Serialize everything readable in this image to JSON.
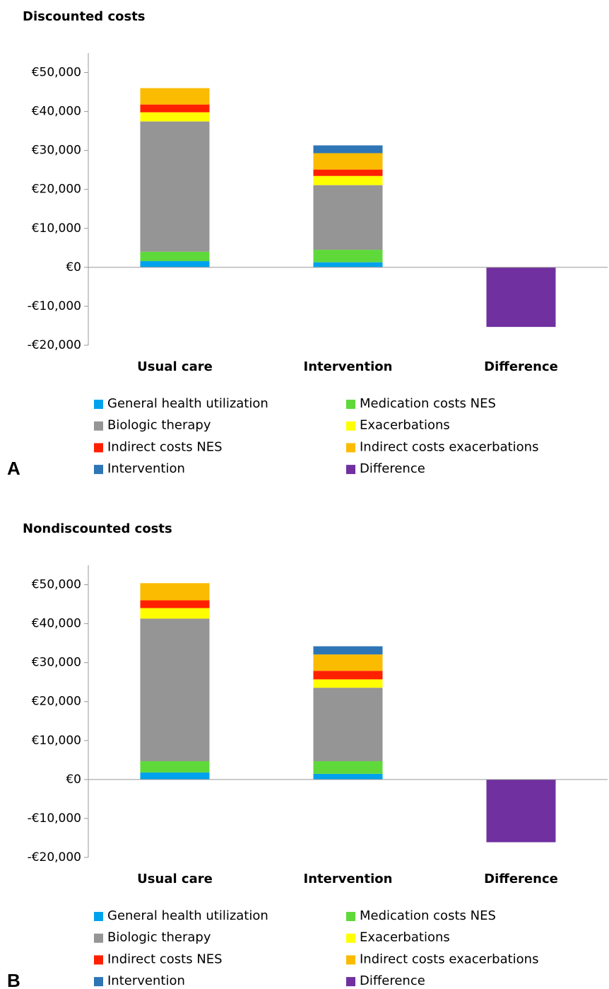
{
  "chart_data": [
    {
      "type": "stacked_bar",
      "title": "Discounted costs",
      "panel_label": "A",
      "categories": [
        "Usual care",
        "Intervention",
        "Difference"
      ],
      "series": [
        {
          "name": "General health utilization",
          "color": "#00a2ed",
          "values": [
            1600,
            1300,
            null
          ]
        },
        {
          "name": "Medication costs NES",
          "color": "#5fd93a",
          "values": [
            2400,
            3200,
            null
          ]
        },
        {
          "name": "Biologic therapy",
          "color": "#959595",
          "values": [
            33450,
            16600,
            null
          ]
        },
        {
          "name": "Exacerbations",
          "color": "#ffff00",
          "values": [
            2350,
            2350,
            null
          ]
        },
        {
          "name": "Indirect costs NES",
          "color": "#ff2000",
          "values": [
            2000,
            1650,
            null
          ]
        },
        {
          "name": "Indirect costs exacerbations",
          "color": "#fbbb00",
          "values": [
            4200,
            4200,
            null
          ]
        },
        {
          "name": "Intervention",
          "color": "#2e75b6",
          "values": [
            null,
            2000,
            null
          ]
        },
        {
          "name": "Difference",
          "color": "#7030a0",
          "values": [
            null,
            null,
            -15300
          ]
        }
      ],
      "ylim": [
        -20000,
        55000
      ],
      "yticks": [
        {
          "value": -20000,
          "label": "-€20,000"
        },
        {
          "value": -10000,
          "label": "-€10,000"
        },
        {
          "value": 0,
          "label": "€0"
        },
        {
          "value": 10000,
          "label": "€10,000"
        },
        {
          "value": 20000,
          "label": "€20,000"
        },
        {
          "value": 30000,
          "label": "€30,000"
        },
        {
          "value": 40000,
          "label": "€40,000"
        },
        {
          "value": 50000,
          "label": "€50,000"
        }
      ]
    },
    {
      "type": "stacked_bar",
      "title": "Nondiscounted costs",
      "panel_label": "B",
      "categories": [
        "Usual care",
        "Intervention",
        "Difference"
      ],
      "series": [
        {
          "name": "General health utilization",
          "color": "#00a2ed",
          "values": [
            1800,
            1450,
            null
          ]
        },
        {
          "name": "Medication costs NES",
          "color": "#5fd93a",
          "values": [
            2900,
            3250,
            null
          ]
        },
        {
          "name": "Biologic therapy",
          "color": "#959595",
          "values": [
            36600,
            18850,
            null
          ]
        },
        {
          "name": "Exacerbations",
          "color": "#ffff00",
          "values": [
            2700,
            2150,
            null
          ]
        },
        {
          "name": "Indirect costs NES",
          "color": "#ff2000",
          "values": [
            2000,
            2200,
            null
          ]
        },
        {
          "name": "Indirect costs exacerbations",
          "color": "#fbbb00",
          "values": [
            4400,
            4200,
            null
          ]
        },
        {
          "name": "Intervention",
          "color": "#2e75b6",
          "values": [
            null,
            2100,
            null
          ]
        },
        {
          "name": "Difference",
          "color": "#7030a0",
          "values": [
            null,
            null,
            -16100
          ]
        }
      ],
      "ylim": [
        -20000,
        55000
      ],
      "yticks": [
        {
          "value": -20000,
          "label": "-€20,000"
        },
        {
          "value": -10000,
          "label": "-€10,000"
        },
        {
          "value": 0,
          "label": "€0"
        },
        {
          "value": 10000,
          "label": "€10,000"
        },
        {
          "value": 20000,
          "label": "€20,000"
        },
        {
          "value": 30000,
          "label": "€30,000"
        },
        {
          "value": 40000,
          "label": "€40,000"
        },
        {
          "value": 50000,
          "label": "€50,000"
        }
      ]
    }
  ]
}
